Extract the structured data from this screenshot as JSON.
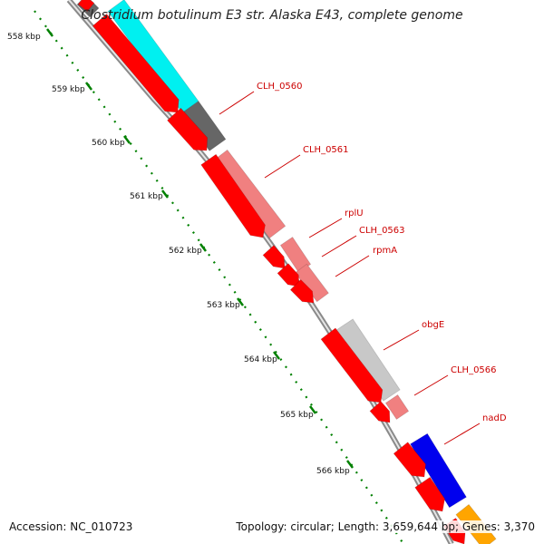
{
  "title": "Clostridium botulinum E3 str. Alaska E43, complete genome",
  "footer": {
    "accession": "Accession: NC_010723",
    "summary": "Topology: circular; Length: 3,659,644 bp; Genes: 3,370"
  },
  "ticks": [
    {
      "label": "558 kbp",
      "pos": 558
    },
    {
      "label": "559 kbp",
      "pos": 559
    },
    {
      "label": "560 kbp",
      "pos": 560
    },
    {
      "label": "561 kbp",
      "pos": 561
    },
    {
      "label": "562 kbp",
      "pos": 562
    },
    {
      "label": "563 kbp",
      "pos": 563
    },
    {
      "label": "564 kbp",
      "pos": 564
    },
    {
      "label": "565 kbp",
      "pos": 565
    },
    {
      "label": "566 kbp",
      "pos": 566
    }
  ],
  "gene_labels": [
    {
      "name": "CLH_0560"
    },
    {
      "name": "CLH_0561"
    },
    {
      "name": "rplU"
    },
    {
      "name": "CLH_0563"
    },
    {
      "name": "rpmA"
    },
    {
      "name": "obgE"
    },
    {
      "name": "CLH_0566"
    },
    {
      "name": "nadD"
    }
  ],
  "colors": {
    "cds": "#ff0000",
    "cds_dark": "#b30000",
    "cyan_feature": "#00f0f0",
    "grey_dark": "#666666",
    "salmon": "#f08080",
    "light_grey": "#c8c8c8",
    "blue": "#0000ee",
    "orange": "#ffa500",
    "backbone": "#888888",
    "tick": "#008000",
    "label": "#cc0000"
  }
}
